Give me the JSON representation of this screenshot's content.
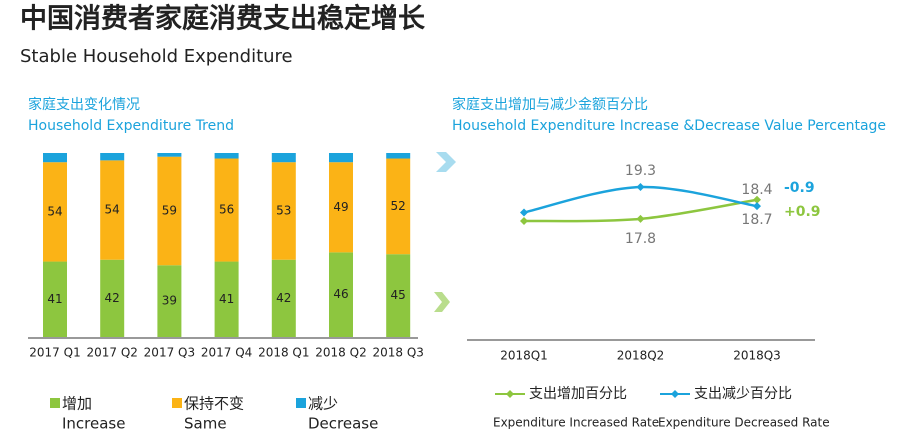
{
  "header": {
    "title": "中国消费者家庭消费支出稳定增长",
    "subtitle": "Stable Household Expenditure"
  },
  "chart_data": [
    {
      "type": "bar",
      "stacked": true,
      "title": "家庭支出变化情况",
      "subtitle": "Household Expenditure Trend",
      "categories": [
        "2017 Q1",
        "2017 Q2",
        "2017 Q3",
        "2017 Q4",
        "2018 Q1",
        "2018 Q2",
        "2018 Q3"
      ],
      "series": [
        {
          "name": "增加",
          "name_en": "Increase",
          "color": "#8dc63f",
          "values": [
            41,
            42,
            39,
            41,
            42,
            46,
            45
          ]
        },
        {
          "name": "保持不变",
          "name_en": "Same",
          "color": "#fbb316",
          "values": [
            54,
            54,
            59,
            56,
            53,
            49,
            52
          ]
        },
        {
          "name": "减少",
          "name_en": "Decrease",
          "color": "#1ba3dc",
          "values": [
            5,
            4,
            2,
            3,
            5,
            5,
            3
          ]
        }
      ]
    },
    {
      "type": "line",
      "title": "家庭支出增加与减少金额百分比",
      "subtitle": "Household Expenditure Increase &Decrease Value Percentage",
      "categories": [
        "2018Q1",
        "2018Q2",
        "2018Q3"
      ],
      "series": [
        {
          "name": "支出增加百分比",
          "name_en": "Expenditure Increased Rate",
          "color": "#8dc63f",
          "values": [
            17.7,
            17.8,
            18.7
          ],
          "value_labels": [
            null,
            "17.8",
            "18.7"
          ],
          "label_side": "below"
        },
        {
          "name": "支出减少百分比",
          "name_en": "Expenditure Decreased Rate",
          "color": "#1ba3dc",
          "values": [
            18.1,
            19.3,
            18.4
          ],
          "value_labels": [
            null,
            "19.3",
            "18.4"
          ],
          "label_side": "above"
        }
      ],
      "annotations": [
        {
          "text": "-0.9",
          "color": "#1ba3dc"
        },
        {
          "text": "+0.9",
          "color": "#8dc63f"
        }
      ]
    }
  ]
}
